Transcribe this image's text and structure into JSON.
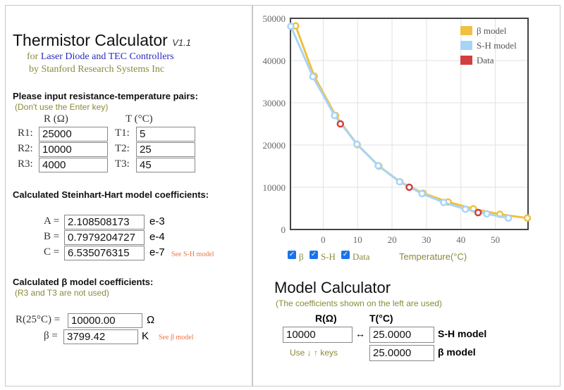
{
  "header": {
    "title": "Thermistor Calculator",
    "version": "V1.1",
    "subtitle_for": "for",
    "subtitle_rest": "Laser Diode and TEC Controllers",
    "byline": "by Stanford Research Systems Inc"
  },
  "inputs": {
    "heading": "Please input resistance-temperature pairs:",
    "note": "(Don't use the Enter key)",
    "r_header": "R (Ω)",
    "t_header": "T (°C)",
    "rows": [
      {
        "r_label": "R1:",
        "r_value": "25000",
        "t_label": "T1:",
        "t_value": "5"
      },
      {
        "r_label": "R2:",
        "r_value": "10000",
        "t_label": "T2:",
        "t_value": "25"
      },
      {
        "r_label": "R3:",
        "r_value": "4000",
        "t_label": "T3:",
        "t_value": "45"
      }
    ]
  },
  "sh": {
    "heading": "Calculated Steinhart-Hart model coefficients:",
    "see": "See S-H model",
    "coeffs": [
      {
        "label": "A =",
        "value": "2.108508173",
        "exp": "e-3"
      },
      {
        "label": "B =",
        "value": "0.7979204727",
        "exp": "e-4"
      },
      {
        "label": "C =",
        "value": "6.535076315",
        "exp": "e-7"
      }
    ]
  },
  "beta": {
    "heading": "Calculated β model coefficients:",
    "note": "(R3 and T3 are not used)",
    "r25_label": "R(25°C) =",
    "r25_value": "10000.00",
    "r25_unit": "Ω",
    "beta_label": "β =",
    "beta_value": "3799.42",
    "beta_unit": "K",
    "see": "See β model"
  },
  "chart_data": {
    "type": "line",
    "xlabel": "Temperature(°C)",
    "ylabel": "",
    "xlim": [
      -9.5,
      59.5
    ],
    "ylim": [
      0,
      50000
    ],
    "xticks": [
      0,
      10,
      20,
      30,
      40,
      50
    ],
    "yticks": [
      0,
      10000,
      20000,
      30000,
      40000,
      50000
    ],
    "grid": true,
    "legend": "top-right",
    "series": [
      {
        "name": "β model",
        "color": "#f0c040",
        "x": [
          -8,
          -2.6,
          3.6,
          9.9,
          16.2,
          22.3,
          29,
          36.3,
          43.6,
          51.3,
          59.3
        ],
        "y": [
          48200,
          36300,
          27000,
          20100,
          15000,
          11300,
          8600,
          6500,
          4900,
          3600,
          2700
        ]
      },
      {
        "name": "S-H model",
        "color": "#a8d4f5",
        "x": [
          -9.4,
          -3,
          3.3,
          9.8,
          16,
          22.2,
          28.7,
          35,
          41.3,
          47.5,
          53.8
        ],
        "y": [
          48100,
          36200,
          27000,
          20200,
          15100,
          11300,
          8500,
          6400,
          4800,
          3700,
          2700
        ]
      },
      {
        "name": "Data",
        "color": "#d04040",
        "x": [
          5,
          25,
          45
        ],
        "y": [
          25000,
          10000,
          4000
        ]
      }
    ],
    "toggles": [
      {
        "label": "β",
        "checked": true
      },
      {
        "label": "S-H",
        "checked": true
      },
      {
        "label": "Data",
        "checked": true
      }
    ]
  },
  "calc": {
    "title": "Model Calculator",
    "note": "(The coefficients shown on the left are used)",
    "r_header": "R(Ω)",
    "t_header": "T(°C)",
    "r_value": "10000",
    "arrow": "↔",
    "sh_value": "25.0000",
    "sh_label": "S-H model",
    "beta_value": "25.0000",
    "beta_label": "β model",
    "hint": "Use ↓ ↑ keys"
  }
}
